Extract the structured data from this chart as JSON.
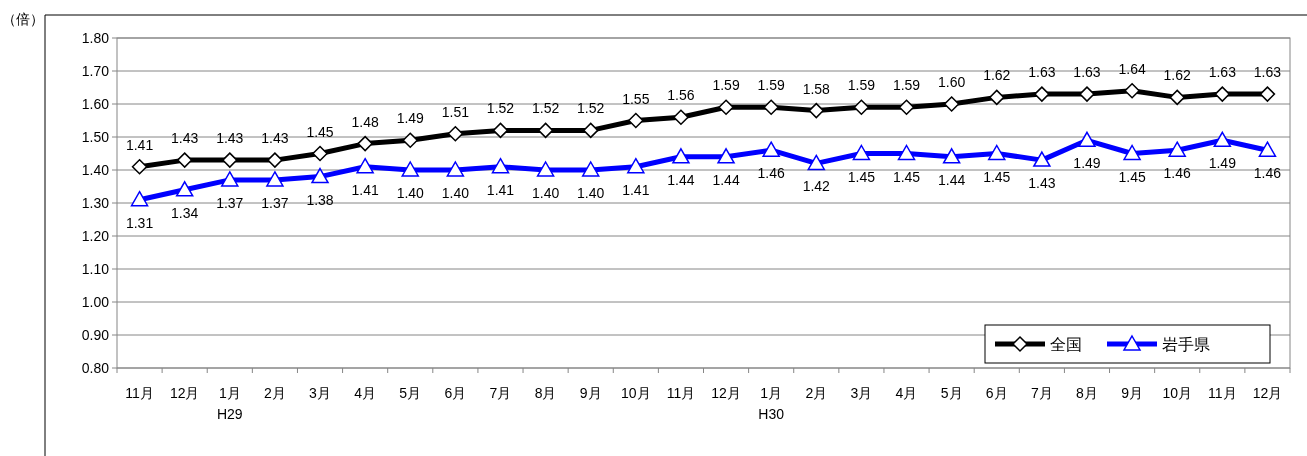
{
  "chart_data": {
    "type": "line",
    "ylabel": "（倍）",
    "categories": [
      "11月",
      "12月",
      "1月\nH29",
      "2月",
      "3月",
      "4月",
      "5月",
      "6月",
      "7月",
      "8月",
      "9月",
      "10月",
      "11月",
      "12月",
      "1月\nH30",
      "2月",
      "3月",
      "4月",
      "5月",
      "6月",
      "7月",
      "8月",
      "9月",
      "10月",
      "11月",
      "12月"
    ],
    "series": [
      {
        "name": "全国",
        "color": "#000000",
        "marker": "diamond",
        "values": [
          1.41,
          1.43,
          1.43,
          1.43,
          1.45,
          1.48,
          1.49,
          1.51,
          1.52,
          1.52,
          1.52,
          1.55,
          1.56,
          1.59,
          1.59,
          1.58,
          1.59,
          1.59,
          1.6,
          1.62,
          1.63,
          1.63,
          1.64,
          1.62,
          1.63,
          1.63
        ],
        "value_labels": [
          "1.41",
          "1.43",
          "1.43",
          "1.43",
          "1.45",
          "1.48",
          "1.49",
          "1.51",
          "1.52",
          "1.52",
          "1.52",
          "1.55",
          "1.56",
          "1.59",
          "1.59",
          "1.58",
          "1.59",
          "1.59",
          "1.60",
          "1.62",
          "1.63",
          "1.63",
          "1.64",
          "1.62",
          "1.63",
          "1.63"
        ]
      },
      {
        "name": "岩手県",
        "color": "#0000ff",
        "marker": "triangle",
        "values": [
          1.31,
          1.34,
          1.37,
          1.37,
          1.38,
          1.41,
          1.4,
          1.4,
          1.41,
          1.4,
          1.4,
          1.41,
          1.44,
          1.44,
          1.46,
          1.42,
          1.45,
          1.45,
          1.44,
          1.45,
          1.43,
          1.49,
          1.45,
          1.46,
          1.49,
          1.46
        ],
        "value_labels": [
          "1.31",
          "1.34",
          "1.37",
          "1.37",
          "1.38",
          "1.41",
          "1.40",
          "1.40",
          "1.41",
          "1.40",
          "1.40",
          "1.41",
          "1.44",
          "1.44",
          "1.46",
          "1.42",
          "1.45",
          "1.45",
          "1.44",
          "1.45",
          "1.43",
          "1.49",
          "1.45",
          "1.46",
          "1.49",
          "1.46"
        ]
      }
    ],
    "ylim": [
      0.8,
      1.8
    ],
    "yticks": [
      {
        "value": 0.8,
        "label": "0.80"
      },
      {
        "value": 0.9,
        "label": "0.90"
      },
      {
        "value": 1.0,
        "label": "1.00"
      },
      {
        "value": 1.1,
        "label": "1.10"
      },
      {
        "value": 1.2,
        "label": "1.20"
      },
      {
        "value": 1.3,
        "label": "1.30"
      },
      {
        "value": 1.4,
        "label": "1.40"
      },
      {
        "value": 1.5,
        "label": "1.50"
      },
      {
        "value": 1.6,
        "label": "1.60"
      },
      {
        "value": 1.7,
        "label": "1.70"
      },
      {
        "value": 1.8,
        "label": "1.80"
      }
    ],
    "grid": "y",
    "legend": "bottom right",
    "line_style": "solid"
  }
}
